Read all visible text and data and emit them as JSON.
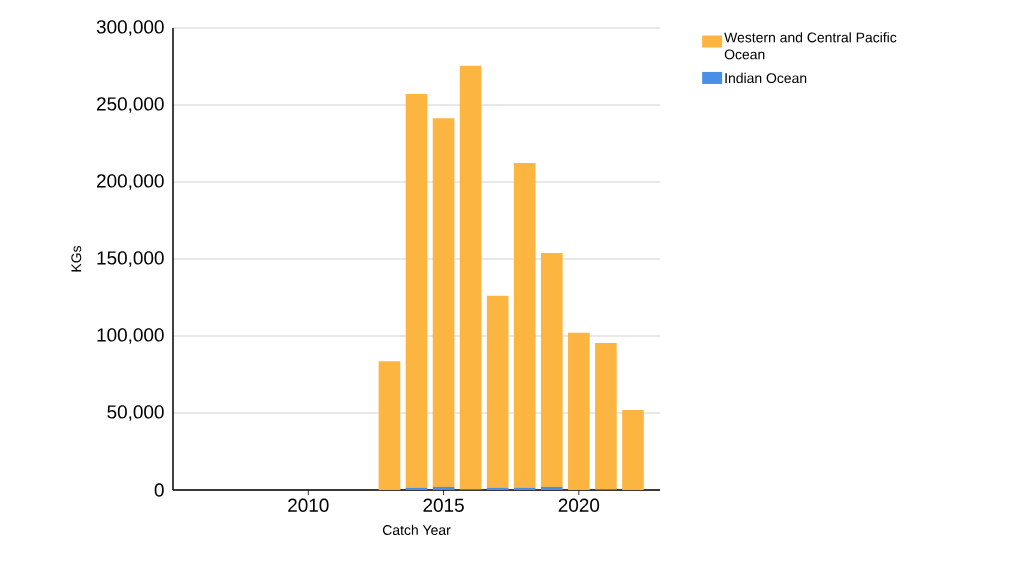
{
  "chart_data": {
    "type": "bar",
    "stacked": true,
    "xlabel": "Catch Year",
    "ylabel": "KGs",
    "x": [
      2013,
      2014,
      2015,
      2016,
      2017,
      2018,
      2019,
      2020,
      2021,
      2022
    ],
    "series": [
      {
        "name": "Indian Ocean",
        "color": "#4a8fe7",
        "values": [
          0,
          1500,
          2000,
          500,
          1500,
          1500,
          2000,
          0,
          500,
          0
        ]
      },
      {
        "name": "Western and Central Pacific Ocean",
        "color": "#fbb540",
        "values": [
          83600,
          255700,
          239400,
          275000,
          124700,
          210900,
          151900,
          102100,
          95000,
          52000
        ]
      }
    ],
    "xlim": [
      2005,
      2023
    ],
    "xticks": [
      2010,
      2015,
      2020
    ],
    "ylim": [
      0,
      300000
    ],
    "yticks": [
      {
        "value": 0,
        "label": "0"
      },
      {
        "value": 50000,
        "label": "50,000"
      },
      {
        "value": 100000,
        "label": "100,000"
      },
      {
        "value": 150000,
        "label": "150,000"
      },
      {
        "value": 200000,
        "label": "200,000"
      },
      {
        "value": 250000,
        "label": "250,000"
      },
      {
        "value": 300000,
        "label": "300,000"
      }
    ],
    "grid": "y",
    "legend": "top right"
  }
}
